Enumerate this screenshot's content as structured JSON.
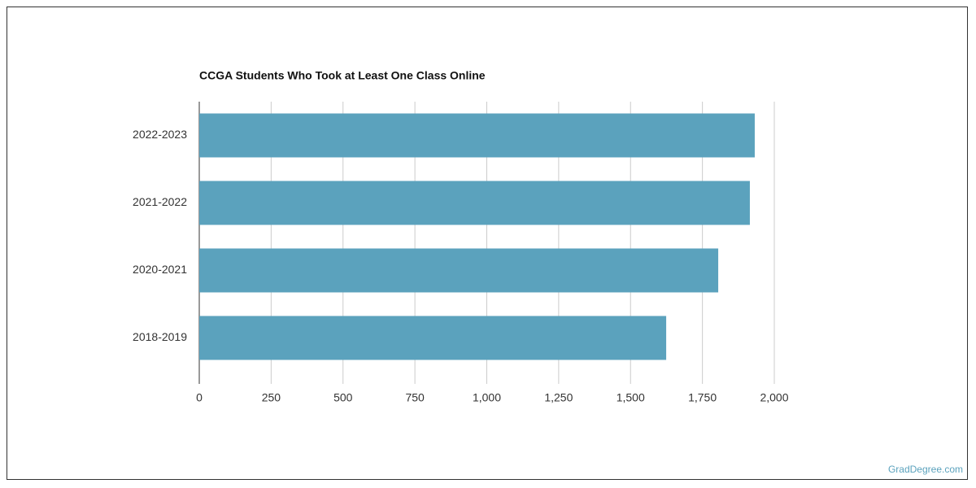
{
  "chart_data": {
    "type": "bar",
    "orientation": "horizontal",
    "title": "CCGA Students Who Took at Least One Class Online",
    "categories": [
      "2022-2023",
      "2021-2022",
      "2020-2021",
      "2018-2019"
    ],
    "values": [
      1932,
      1915,
      1805,
      1624
    ],
    "color": "#5ba2bd",
    "xlim": [
      0,
      2000
    ],
    "xticks": [
      0,
      250,
      500,
      750,
      {
        "value": 1000,
        "label": "1,000"
      },
      {
        "value": 1250,
        "label": "1,250"
      },
      {
        "value": 1500,
        "label": "1,500"
      },
      {
        "value": 1750,
        "label": "1,750"
      },
      {
        "value": 2000,
        "label": "2,000"
      }
    ],
    "grid": true
  },
  "source": "GradDegree.com"
}
